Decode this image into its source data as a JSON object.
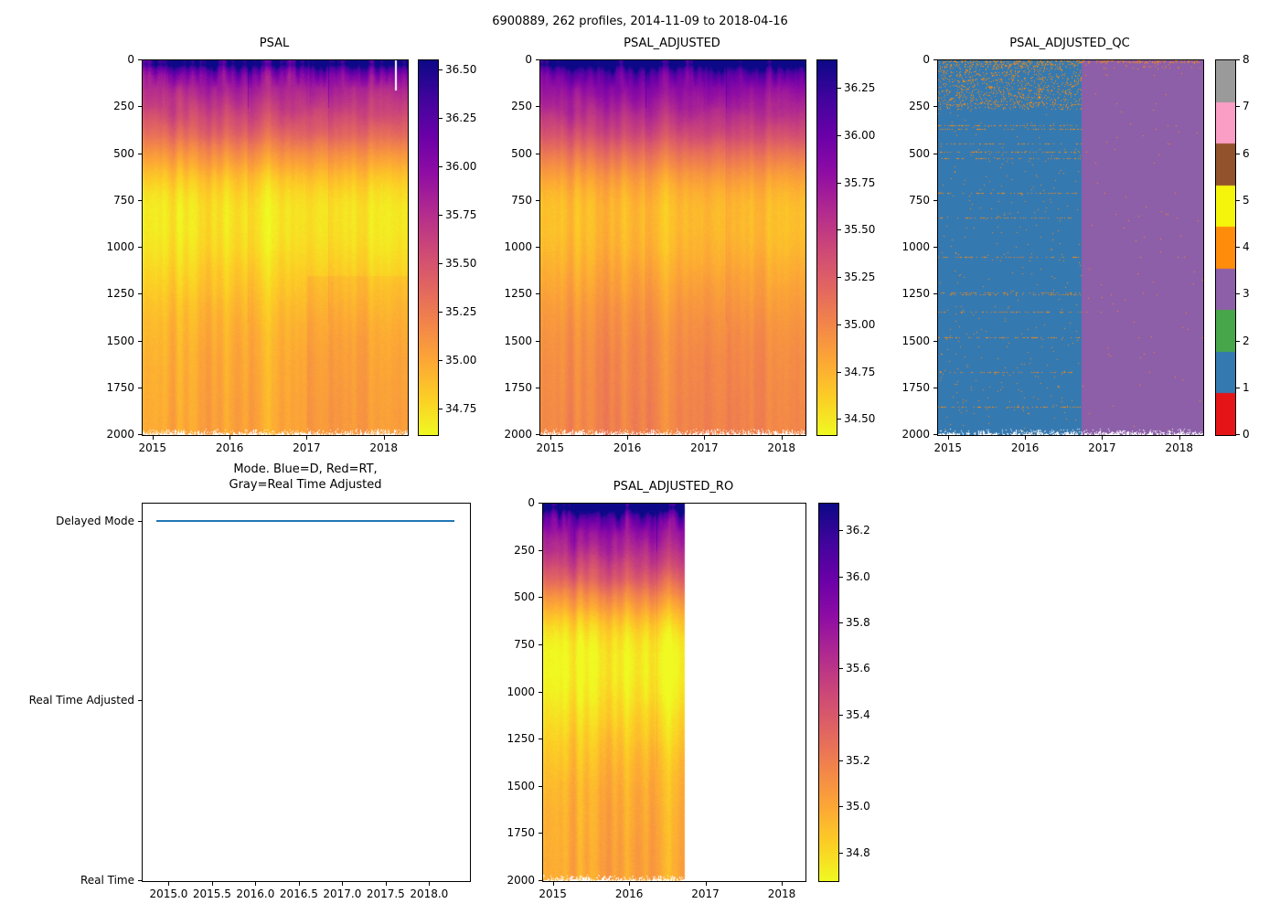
{
  "figure_title": "6900889, 262 profiles, 2014-11-09 to 2018-04-16",
  "colors": {
    "mode_line_blue": "#1f77b4",
    "qc_blue_region": "#3579b1",
    "qc_purple_region": "#8d5fa8",
    "qc_speckle_orange": "#ff8c0a"
  },
  "chart_data": [
    {
      "type": "heatmap",
      "title": "PSAL",
      "xlabel": "",
      "ylabel": "",
      "x_range": [
        2014.86,
        2018.3
      ],
      "x_tick_values": [
        2015,
        2016,
        2017,
        2018
      ],
      "x_tick_labels": [
        "2015",
        "2016",
        "2017",
        "2018"
      ],
      "y_range": [
        0,
        2000
      ],
      "y_tick_values": [
        0,
        250,
        500,
        750,
        1000,
        1250,
        1500,
        1750,
        2000
      ],
      "y_tick_labels": [
        "0",
        "250",
        "500",
        "750",
        "1000",
        "1250",
        "1500",
        "1750",
        "2000"
      ],
      "colormap": "plasma_r",
      "vmin": 34.62,
      "vmax": 36.55,
      "colorbar_tick_values": [
        36.5,
        36.25,
        36.0,
        35.75,
        35.5,
        35.25,
        35.0,
        34.75
      ],
      "colorbar_tick_labels": [
        "36.50",
        "36.25",
        "36.00",
        "35.75",
        "35.50",
        "35.25",
        "35.00",
        "34.75"
      ],
      "profile": {
        "depths_m": [
          0,
          20,
          40,
          60,
          80,
          100,
          150,
          200,
          250,
          300,
          350,
          400,
          450,
          500,
          550,
          600,
          650,
          700,
          750,
          800,
          900,
          1000,
          1100,
          1200,
          1300,
          1400,
          1500,
          1600,
          1700,
          1800,
          1900,
          2000
        ],
        "salinity_psu": [
          36.35,
          36.45,
          36.2,
          36.05,
          35.95,
          35.9,
          35.8,
          35.72,
          35.65,
          35.55,
          35.45,
          35.35,
          35.22,
          35.1,
          35.0,
          34.9,
          34.82,
          34.76,
          34.72,
          34.7,
          34.7,
          34.73,
          34.78,
          34.83,
          34.88,
          34.92,
          34.95,
          34.97,
          34.98,
          34.99,
          35.0,
          35.0
        ]
      }
    },
    {
      "type": "heatmap",
      "title": "PSAL_ADJUSTED",
      "xlabel": "",
      "ylabel": "",
      "x_range": [
        2014.86,
        2018.3
      ],
      "x_tick_values": [
        2015,
        2016,
        2017,
        2018
      ],
      "x_tick_labels": [
        "2015",
        "2016",
        "2017",
        "2018"
      ],
      "y_range": [
        0,
        2000
      ],
      "y_tick_values": [
        0,
        250,
        500,
        750,
        1000,
        1250,
        1500,
        1750,
        2000
      ],
      "y_tick_labels": [
        "0",
        "250",
        "500",
        "750",
        "1000",
        "1250",
        "1500",
        "1750",
        "2000"
      ],
      "colormap": "plasma_r",
      "vmin": 34.42,
      "vmax": 36.4,
      "colorbar_tick_values": [
        36.25,
        36.0,
        35.75,
        35.5,
        35.25,
        35.0,
        34.75,
        34.5
      ],
      "colorbar_tick_labels": [
        "36.25",
        "36.00",
        "35.75",
        "35.50",
        "35.25",
        "35.00",
        "34.75",
        "34.50"
      ],
      "profile": {
        "depths_m": [
          0,
          20,
          40,
          60,
          80,
          100,
          150,
          200,
          250,
          300,
          350,
          400,
          450,
          500,
          550,
          600,
          650,
          700,
          750,
          800,
          900,
          1000,
          1100,
          1200,
          1300,
          1400,
          1500,
          1600,
          1700,
          1800,
          1900,
          2000
        ],
        "salinity_psu": [
          36.35,
          36.45,
          36.2,
          36.05,
          35.95,
          35.9,
          35.8,
          35.72,
          35.65,
          35.55,
          35.45,
          35.35,
          35.22,
          35.1,
          35.0,
          34.9,
          34.82,
          34.76,
          34.72,
          34.7,
          34.7,
          34.73,
          34.78,
          34.83,
          34.88,
          34.92,
          34.95,
          34.97,
          34.98,
          34.99,
          35.0,
          35.0
        ]
      }
    },
    {
      "type": "heatmap_categorical",
      "title": "PSAL_ADJUSTED_QC",
      "x_range": [
        2014.86,
        2018.3
      ],
      "x_tick_values": [
        2015,
        2016,
        2017,
        2018
      ],
      "x_tick_labels": [
        "2015",
        "2016",
        "2017",
        "2018"
      ],
      "y_range": [
        0,
        2000
      ],
      "y_tick_values": [
        0,
        250,
        500,
        750,
        1000,
        1250,
        1500,
        1750,
        2000
      ],
      "y_tick_labels": [
        "0",
        "250",
        "500",
        "750",
        "1000",
        "1250",
        "1500",
        "1750",
        "2000"
      ],
      "qc_scale_values": [
        0,
        1,
        2,
        3,
        4,
        5,
        6,
        7,
        8
      ],
      "qc_scale_labels": [
        "0",
        "1",
        "2",
        "3",
        "4",
        "5",
        "6",
        "7",
        "8"
      ],
      "qc_colors": [
        "#e41417",
        "#3579b1",
        "#47a64a",
        "#8d5fa8",
        "#ff8c0a",
        "#f5f50c",
        "#92522c",
        "#fb9ec6",
        "#9a9a9a"
      ],
      "regions": [
        {
          "x_from": 2014.86,
          "x_to": 2016.72,
          "qc": 1
        },
        {
          "x_from": 2016.72,
          "x_to": 2018.3,
          "qc": 3
        }
      ],
      "speckles_qc": 4
    },
    {
      "type": "line",
      "title_lines": [
        "Mode. Blue=D, Red=RT,",
        "Gray=Real Time Adjusted"
      ],
      "x_range": [
        2014.69,
        2018.46
      ],
      "x_tick_values": [
        2015.0,
        2015.5,
        2016.0,
        2016.5,
        2017.0,
        2017.5,
        2018.0
      ],
      "x_tick_labels": [
        "2015.0",
        "2015.5",
        "2016.0",
        "2016.5",
        "2017.0",
        "2017.5",
        "2018.0"
      ],
      "y_range": [
        0,
        2.1
      ],
      "y_category_values": [
        0,
        1,
        2
      ],
      "y_category_labels": [
        "Real Time",
        "Real Time Adjusted",
        "Delayed Mode"
      ],
      "series": [
        {
          "name": "mode",
          "color": "#1f77b4",
          "value_label": "Delayed Mode",
          "value": 2,
          "x_start": 2014.86,
          "x_end": 2018.29
        }
      ]
    },
    {
      "type": "heatmap",
      "title": "PSAL_ADJUSTED_RO",
      "x_range": [
        2014.86,
        2018.3
      ],
      "data_x_end": 2016.72,
      "x_tick_values": [
        2015,
        2016,
        2017,
        2018
      ],
      "x_tick_labels": [
        "2015",
        "2016",
        "2017",
        "2018"
      ],
      "y_range": [
        0,
        2000
      ],
      "y_tick_values": [
        0,
        250,
        500,
        750,
        1000,
        1250,
        1500,
        1750,
        2000
      ],
      "y_tick_labels": [
        "0",
        "250",
        "500",
        "750",
        "1000",
        "1250",
        "1500",
        "1750",
        "2000"
      ],
      "colormap": "plasma_r",
      "vmin": 34.68,
      "vmax": 36.32,
      "colorbar_tick_values": [
        36.2,
        36.0,
        35.8,
        35.6,
        35.4,
        35.2,
        35.0,
        34.8
      ],
      "colorbar_tick_labels": [
        "36.2",
        "36.0",
        "35.8",
        "35.6",
        "35.4",
        "35.2",
        "35.0",
        "34.8"
      ],
      "profile": {
        "depths_m": [
          0,
          20,
          40,
          60,
          80,
          100,
          150,
          200,
          250,
          300,
          350,
          400,
          450,
          500,
          550,
          600,
          650,
          700,
          750,
          800,
          900,
          1000,
          1100,
          1200,
          1300,
          1400,
          1500,
          1600,
          1700,
          1800,
          1900,
          2000
        ],
        "salinity_psu": [
          36.35,
          36.45,
          36.2,
          36.05,
          35.95,
          35.9,
          35.8,
          35.72,
          35.65,
          35.55,
          35.45,
          35.35,
          35.22,
          35.1,
          35.0,
          34.9,
          34.82,
          34.76,
          34.72,
          34.7,
          34.7,
          34.73,
          34.78,
          34.83,
          34.88,
          34.92,
          34.95,
          34.97,
          34.98,
          34.99,
          35.0,
          35.0
        ]
      }
    }
  ]
}
